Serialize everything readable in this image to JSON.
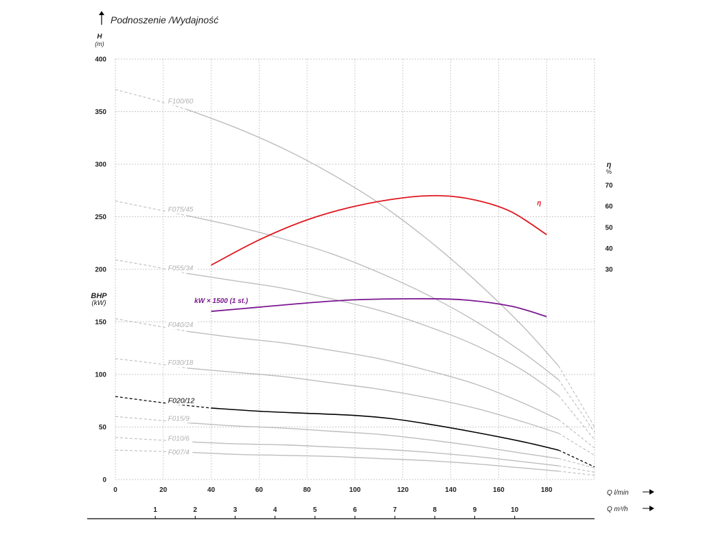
{
  "chart_data": {
    "type": "line",
    "title": "Podnoszenie /Wydajność",
    "y_axis": {
      "label": "H",
      "unit": "(m)",
      "lim": [
        0,
        400
      ],
      "ticks": [
        0,
        50,
        100,
        150,
        200,
        250,
        300,
        350,
        400
      ]
    },
    "bhp_axis": {
      "label": "BHP",
      "unit": "(kW)"
    },
    "eff_axis": {
      "label": "η",
      "unit": "%",
      "ticks": [
        30,
        40,
        50,
        60,
        70
      ]
    },
    "x_axis": {
      "label": "Q l/min",
      "lim": [
        0,
        200
      ],
      "ticks": [
        0,
        20,
        40,
        60,
        80,
        100,
        120,
        140,
        160,
        180
      ],
      "grid": [
        0,
        20,
        40,
        60,
        80,
        100,
        120,
        140,
        160,
        180,
        200
      ]
    },
    "x2_axis": {
      "label": "Q m³/h",
      "ticks": [
        1,
        2,
        3,
        4,
        5,
        6,
        7,
        8,
        9,
        10
      ]
    },
    "grid": true,
    "series": [
      {
        "name": "F100/60",
        "color": "#bdbdbd",
        "label_pos": [
          22,
          358
        ],
        "dashed_start": [
          [
            0,
            371
          ],
          [
            15,
            362
          ],
          [
            30,
            352
          ]
        ],
        "solid": [
          [
            30,
            352
          ],
          [
            50,
            335
          ],
          [
            70,
            315
          ],
          [
            90,
            291
          ],
          [
            110,
            263
          ],
          [
            130,
            229
          ],
          [
            150,
            190
          ],
          [
            170,
            146
          ],
          [
            185,
            108
          ]
        ],
        "dashed_end": [
          [
            185,
            108
          ],
          [
            200,
            50
          ]
        ]
      },
      {
        "name": "F075/45",
        "color": "#bdbdbd",
        "label_pos": [
          22,
          255
        ],
        "dashed_start": [
          [
            0,
            265
          ],
          [
            15,
            258
          ],
          [
            30,
            251
          ]
        ],
        "solid": [
          [
            30,
            251
          ],
          [
            50,
            241
          ],
          [
            70,
            229
          ],
          [
            90,
            215
          ],
          [
            110,
            197
          ],
          [
            130,
            176
          ],
          [
            150,
            151
          ],
          [
            170,
            121
          ],
          [
            185,
            95
          ]
        ],
        "dashed_end": [
          [
            185,
            95
          ],
          [
            200,
            45
          ]
        ]
      },
      {
        "name": "F055/34",
        "color": "#bdbdbd",
        "label_pos": [
          22,
          199
        ],
        "dashed_start": [
          [
            0,
            209
          ],
          [
            15,
            203
          ],
          [
            30,
            196
          ]
        ],
        "solid": [
          [
            30,
            196
          ],
          [
            50,
            189
          ],
          [
            70,
            182
          ],
          [
            90,
            172
          ],
          [
            110,
            161
          ],
          [
            130,
            146
          ],
          [
            150,
            128
          ],
          [
            170,
            104
          ],
          [
            185,
            80
          ]
        ],
        "dashed_end": [
          [
            185,
            80
          ],
          [
            200,
            38
          ]
        ]
      },
      {
        "name": "F040/24",
        "color": "#bdbdbd",
        "label_pos": [
          22,
          145
        ],
        "dashed_start": [
          [
            0,
            153
          ],
          [
            15,
            147
          ],
          [
            30,
            141
          ]
        ],
        "solid": [
          [
            30,
            141
          ],
          [
            50,
            135
          ],
          [
            70,
            130
          ],
          [
            90,
            123
          ],
          [
            110,
            115
          ],
          [
            130,
            104
          ],
          [
            150,
            91
          ],
          [
            170,
            73
          ],
          [
            185,
            57
          ]
        ],
        "dashed_end": [
          [
            185,
            57
          ],
          [
            200,
            30
          ]
        ]
      },
      {
        "name": "F030/18",
        "color": "#bdbdbd",
        "label_pos": [
          22,
          109
        ],
        "dashed_start": [
          [
            0,
            115
          ],
          [
            15,
            111
          ],
          [
            30,
            106
          ]
        ],
        "solid": [
          [
            30,
            106
          ],
          [
            50,
            102
          ],
          [
            70,
            98
          ],
          [
            90,
            92
          ],
          [
            110,
            86
          ],
          [
            130,
            78
          ],
          [
            150,
            68
          ],
          [
            170,
            55
          ],
          [
            185,
            44
          ]
        ],
        "dashed_end": [
          [
            185,
            44
          ],
          [
            200,
            23
          ]
        ]
      },
      {
        "name": "F015/9",
        "color": "#bdbdbd",
        "label_pos": [
          22,
          56
        ],
        "dashed_start": [
          [
            0,
            60
          ],
          [
            15,
            57
          ],
          [
            30,
            54
          ]
        ],
        "solid": [
          [
            30,
            54
          ],
          [
            50,
            51
          ],
          [
            70,
            49
          ],
          [
            90,
            46
          ],
          [
            110,
            43
          ],
          [
            130,
            38
          ],
          [
            150,
            32
          ],
          [
            170,
            25
          ],
          [
            185,
            20
          ]
        ],
        "dashed_end": [
          [
            185,
            20
          ],
          [
            200,
            11
          ]
        ]
      },
      {
        "name": "F010/6",
        "color": "#bdbdbd",
        "label_pos": [
          22,
          37
        ],
        "dashed_start": [
          [
            0,
            40
          ],
          [
            15,
            38
          ],
          [
            30,
            36
          ]
        ],
        "solid": [
          [
            30,
            36
          ],
          [
            50,
            34
          ],
          [
            70,
            33
          ],
          [
            90,
            31
          ],
          [
            110,
            29
          ],
          [
            130,
            26
          ],
          [
            150,
            22
          ],
          [
            170,
            17
          ],
          [
            185,
            13
          ]
        ],
        "dashed_end": [
          [
            185,
            13
          ],
          [
            200,
            7
          ]
        ]
      },
      {
        "name": "F007/4",
        "color": "#bdbdbd",
        "label_pos": [
          22,
          24
        ],
        "dashed_start": [
          [
            0,
            28
          ],
          [
            15,
            27
          ],
          [
            30,
            26
          ]
        ],
        "solid": [
          [
            30,
            26
          ],
          [
            50,
            24
          ],
          [
            70,
            23
          ],
          [
            90,
            22
          ],
          [
            110,
            20
          ],
          [
            130,
            18
          ],
          [
            150,
            15
          ],
          [
            170,
            11
          ],
          [
            185,
            8
          ]
        ],
        "dashed_end": [
          [
            185,
            8
          ],
          [
            200,
            4
          ]
        ]
      },
      {
        "name": "F020/12",
        "color": "#000000",
        "highlight": true,
        "label_pos": [
          22,
          73
        ],
        "dashed_start": [
          [
            0,
            79
          ],
          [
            20,
            73
          ],
          [
            40,
            68
          ]
        ],
        "solid": [
          [
            40,
            68
          ],
          [
            60,
            65
          ],
          [
            80,
            63
          ],
          [
            100,
            61
          ],
          [
            115,
            58
          ],
          [
            130,
            53
          ],
          [
            150,
            45
          ],
          [
            170,
            36
          ],
          [
            185,
            28
          ]
        ],
        "dashed_end": [
          [
            185,
            28
          ],
          [
            200,
            12
          ]
        ]
      },
      {
        "name": "η",
        "color": "#e0161f",
        "label_pos": [
          176,
          261
        ],
        "solid": [
          [
            40,
            204
          ],
          [
            60,
            228
          ],
          [
            80,
            247
          ],
          [
            100,
            260
          ],
          [
            120,
            268
          ],
          [
            136,
            270
          ],
          [
            150,
            266
          ],
          [
            165,
            255
          ],
          [
            180,
            233
          ]
        ]
      },
      {
        "name": "kW × 1500 (1 st.)",
        "color": "#7a1690",
        "label_pos": [
          33,
          168
        ],
        "solid": [
          [
            40,
            160
          ],
          [
            60,
            164
          ],
          [
            80,
            168
          ],
          [
            100,
            171
          ],
          [
            125,
            172
          ],
          [
            145,
            171
          ],
          [
            165,
            165
          ],
          [
            180,
            155
          ]
        ]
      }
    ]
  }
}
